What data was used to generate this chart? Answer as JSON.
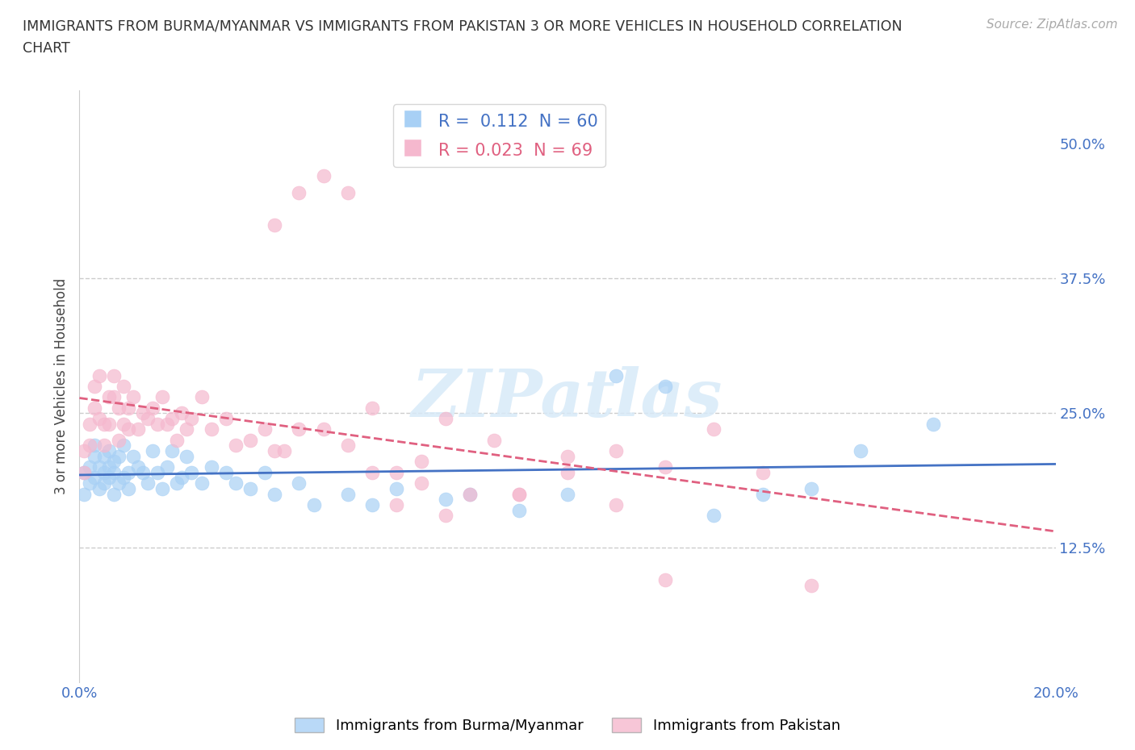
{
  "title_line1": "IMMIGRANTS FROM BURMA/MYANMAR VS IMMIGRANTS FROM PAKISTAN 3 OR MORE VEHICLES IN HOUSEHOLD CORRELATION",
  "title_line2": "CHART",
  "source": "Source: ZipAtlas.com",
  "ylabel": "3 or more Vehicles in Household",
  "xlabel_burma": "Immigrants from Burma/Myanmar",
  "xlabel_pakistan": "Immigrants from Pakistan",
  "xlim": [
    0.0,
    0.2
  ],
  "ylim": [
    0.0,
    0.55
  ],
  "xticks": [
    0.0,
    0.05,
    0.1,
    0.15,
    0.2
  ],
  "xticklabels": [
    "0.0%",
    "",
    "",
    "",
    "20.0%"
  ],
  "yticks": [
    0.0,
    0.125,
    0.25,
    0.375,
    0.5
  ],
  "yticklabels": [
    "",
    "12.5%",
    "25.0%",
    "37.5%",
    "50.0%"
  ],
  "hlines": [
    0.125,
    0.25,
    0.375
  ],
  "burma_color": "#a8d0f5",
  "pakistan_color": "#f5b8ce",
  "burma_line_color": "#4472c4",
  "pakistan_line_color": "#e06080",
  "R_burma": 0.112,
  "N_burma": 60,
  "R_pakistan": 0.023,
  "N_pakistan": 69,
  "watermark": "ZIPatlas",
  "background_color": "#ffffff",
  "burma_x": [
    0.001,
    0.001,
    0.002,
    0.002,
    0.003,
    0.003,
    0.003,
    0.004,
    0.004,
    0.005,
    0.005,
    0.005,
    0.006,
    0.006,
    0.006,
    0.007,
    0.007,
    0.007,
    0.008,
    0.008,
    0.009,
    0.009,
    0.01,
    0.01,
    0.011,
    0.012,
    0.013,
    0.014,
    0.015,
    0.016,
    0.017,
    0.018,
    0.019,
    0.02,
    0.021,
    0.022,
    0.023,
    0.025,
    0.027,
    0.03,
    0.032,
    0.035,
    0.038,
    0.04,
    0.045,
    0.048,
    0.055,
    0.06,
    0.065,
    0.075,
    0.08,
    0.09,
    0.1,
    0.11,
    0.12,
    0.13,
    0.14,
    0.15,
    0.16,
    0.175
  ],
  "burma_y": [
    0.195,
    0.175,
    0.2,
    0.185,
    0.21,
    0.19,
    0.22,
    0.18,
    0.2,
    0.195,
    0.21,
    0.185,
    0.2,
    0.215,
    0.19,
    0.195,
    0.175,
    0.205,
    0.185,
    0.21,
    0.19,
    0.22,
    0.195,
    0.18,
    0.21,
    0.2,
    0.195,
    0.185,
    0.215,
    0.195,
    0.18,
    0.2,
    0.215,
    0.185,
    0.19,
    0.21,
    0.195,
    0.185,
    0.2,
    0.195,
    0.185,
    0.18,
    0.195,
    0.175,
    0.185,
    0.165,
    0.175,
    0.165,
    0.18,
    0.17,
    0.175,
    0.16,
    0.175,
    0.285,
    0.275,
    0.155,
    0.175,
    0.18,
    0.215,
    0.24
  ],
  "pakistan_x": [
    0.001,
    0.001,
    0.002,
    0.002,
    0.003,
    0.003,
    0.004,
    0.004,
    0.005,
    0.005,
    0.006,
    0.006,
    0.007,
    0.007,
    0.008,
    0.008,
    0.009,
    0.009,
    0.01,
    0.01,
    0.011,
    0.012,
    0.013,
    0.014,
    0.015,
    0.016,
    0.017,
    0.018,
    0.019,
    0.02,
    0.021,
    0.022,
    0.023,
    0.025,
    0.027,
    0.03,
    0.032,
    0.035,
    0.038,
    0.04,
    0.042,
    0.045,
    0.05,
    0.055,
    0.06,
    0.065,
    0.07,
    0.075,
    0.085,
    0.09,
    0.1,
    0.11,
    0.12,
    0.13,
    0.14,
    0.04,
    0.045,
    0.05,
    0.055,
    0.06,
    0.065,
    0.07,
    0.075,
    0.08,
    0.09,
    0.1,
    0.11,
    0.12,
    0.15
  ],
  "pakistan_y": [
    0.215,
    0.195,
    0.22,
    0.24,
    0.275,
    0.255,
    0.285,
    0.245,
    0.22,
    0.24,
    0.265,
    0.24,
    0.265,
    0.285,
    0.255,
    0.225,
    0.24,
    0.275,
    0.235,
    0.255,
    0.265,
    0.235,
    0.25,
    0.245,
    0.255,
    0.24,
    0.265,
    0.24,
    0.245,
    0.225,
    0.25,
    0.235,
    0.245,
    0.265,
    0.235,
    0.245,
    0.22,
    0.225,
    0.235,
    0.215,
    0.215,
    0.235,
    0.235,
    0.22,
    0.255,
    0.195,
    0.205,
    0.245,
    0.225,
    0.175,
    0.21,
    0.215,
    0.2,
    0.235,
    0.195,
    0.425,
    0.455,
    0.47,
    0.455,
    0.195,
    0.165,
    0.185,
    0.155,
    0.175,
    0.175,
    0.195,
    0.165,
    0.095,
    0.09
  ]
}
